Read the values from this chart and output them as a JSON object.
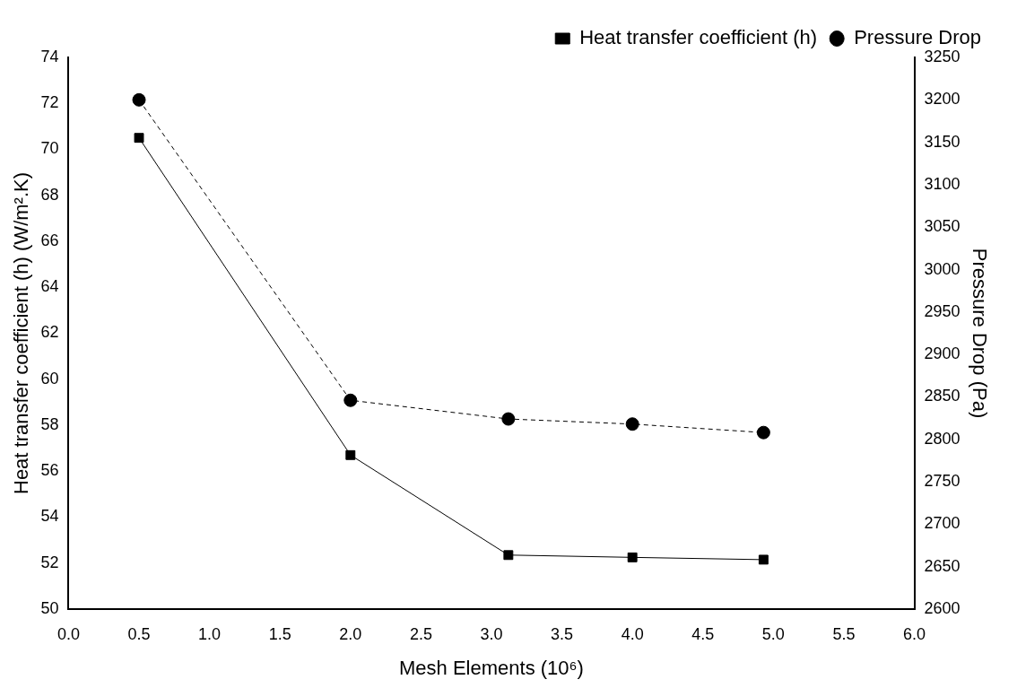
{
  "chart_data": {
    "type": "line",
    "xlabel": "Mesh Elements (10⁶)",
    "ylabel": "Heat transfer coefficient (h) (W/m².K)",
    "y2label": "Pressure Drop (Pa)",
    "x": [
      0.5,
      2.0,
      3.12,
      4.0,
      4.93
    ],
    "series": [
      {
        "name": "Heat transfer coefficient (h)",
        "color": "#000000",
        "marker": "square",
        "line_style": "solid",
        "values": [
          70.5,
          56.7,
          52.35,
          52.25,
          52.15
        ]
      },
      {
        "name": "Pressure Drop",
        "color": "#000000",
        "marker": "circle",
        "line_style": "dashed",
        "axis": "y2",
        "values": [
          3200,
          2846,
          2824,
          2818,
          2808
        ]
      }
    ],
    "xlim": [
      0,
      6
    ],
    "xticks": [
      {
        "value": 0,
        "label": "0.0"
      },
      {
        "value": 0.5,
        "label": "0.5"
      },
      {
        "value": 1,
        "label": "1.0"
      },
      {
        "value": 1.5,
        "label": "1.5"
      },
      {
        "value": 2,
        "label": "2.0"
      },
      {
        "value": 2.5,
        "label": "2.5"
      },
      {
        "value": 3,
        "label": "3.0"
      },
      {
        "value": 3.5,
        "label": "3.5"
      },
      {
        "value": 4,
        "label": "4.0"
      },
      {
        "value": 4.5,
        "label": "4.5"
      },
      {
        "value": 5,
        "label": "5.0"
      },
      {
        "value": 5.5,
        "label": "5.5"
      },
      {
        "value": 6,
        "label": "6.0"
      }
    ],
    "ylim": [
      50,
      74
    ],
    "yticks": [
      50,
      52,
      54,
      56,
      58,
      60,
      62,
      64,
      66,
      68,
      70,
      72,
      74
    ],
    "y2lim": [
      2600,
      3250
    ],
    "y2ticks": [
      2600,
      2650,
      2700,
      2750,
      2800,
      2850,
      2900,
      2950,
      3000,
      3050,
      3100,
      3150,
      3200,
      3250
    ],
    "grid": false,
    "legend": "top right"
  }
}
